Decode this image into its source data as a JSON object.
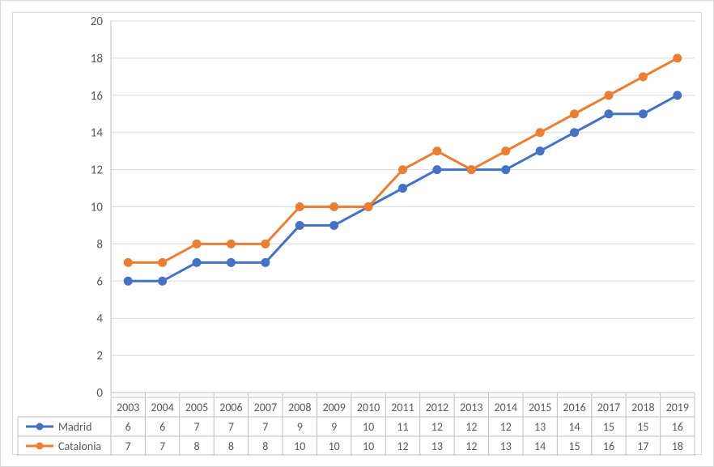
{
  "chart": {
    "type": "line",
    "ylim": [
      0,
      20
    ],
    "ytick_step": 2,
    "yticks": [
      0,
      2,
      4,
      6,
      8,
      10,
      12,
      14,
      16,
      18,
      20
    ],
    "categories": [
      "2003",
      "2004",
      "2005",
      "2006",
      "2007",
      "2008",
      "2009",
      "2010",
      "2011",
      "2012",
      "2013",
      "2014",
      "2015",
      "2016",
      "2017",
      "2018",
      "2019"
    ],
    "series": [
      {
        "name": "Madrid",
        "color": "#4472c4",
        "marker": "circle",
        "marker_size": 5,
        "values": [
          6,
          6,
          7,
          7,
          7,
          9,
          9,
          10,
          11,
          12,
          12,
          12,
          13,
          14,
          15,
          15,
          16
        ]
      },
      {
        "name": "Catalonia",
        "color": "#ed7d31",
        "marker": "circle",
        "marker_size": 5,
        "values": [
          7,
          7,
          8,
          8,
          8,
          10,
          10,
          10,
          12,
          13,
          12,
          13,
          14,
          15,
          16,
          17,
          18
        ]
      }
    ],
    "line_width": 3,
    "background_color": "#ffffff",
    "grid_color": "#d9d9d9",
    "border_color": "#d9d9d9",
    "axis_color": "#bfbfbf",
    "tick_font_color": "#595959",
    "tick_font_size": 15,
    "table_font_size": 14,
    "legend_position": "bottom-table"
  }
}
